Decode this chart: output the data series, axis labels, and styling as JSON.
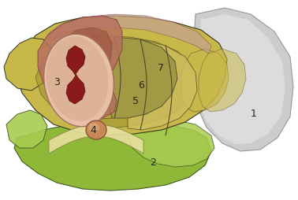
{
  "bg_color": "#ffffff",
  "colors": {
    "body_outer": "#c8b84a",
    "body_dark": "#a09030",
    "body_mid": "#b8a840",
    "sclerotome_5": "#a09848",
    "myotome_6": "#b8a840",
    "dermatome_7": "#d0c060",
    "neural_tube_pink": "#e8c0a8",
    "neural_tube_wall": "#c09080",
    "neural_lumen": "#8b1a1a",
    "sclerotome_wrap": "#b87060",
    "sclerotome_wrap2": "#9a5040",
    "notochord": "#c88858",
    "notochord_hi": "#e0aa78",
    "endoderm_main": "#90b838",
    "endoderm_light": "#a8cc50",
    "endoderm_dark": "#708828",
    "ectoderm_panel": "#cccccc",
    "ectoderm_hi": "#e8e8e8",
    "outline": "#303820",
    "seg_line": "#504828"
  },
  "label_fontsize": 9
}
